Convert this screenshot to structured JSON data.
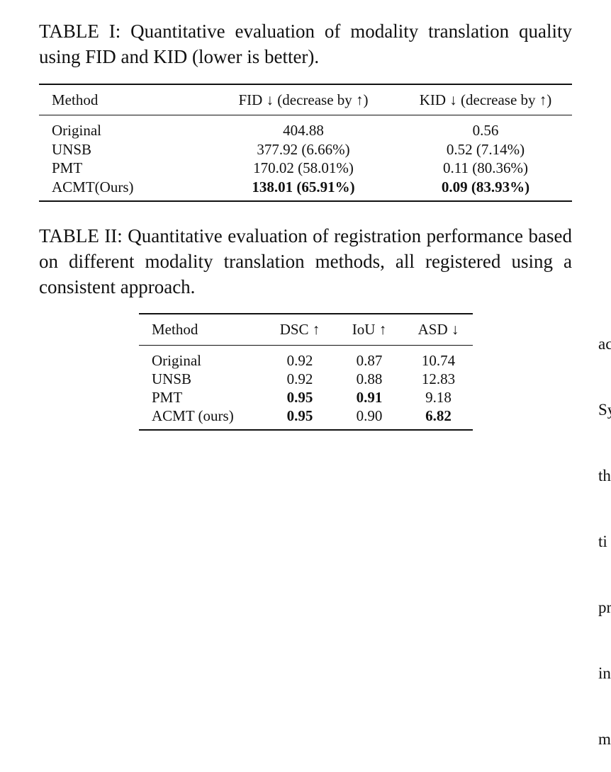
{
  "table1": {
    "caption": "TABLE I: Quantitative evaluation of modality translation quality using FID and KID (lower is better).",
    "headers": [
      "Method",
      "FID ↓ (decrease by ↑)",
      "KID ↓ (decrease by ↑)"
    ],
    "rows": [
      {
        "method": "Original",
        "fid": "404.88",
        "kid": "0.56",
        "bold": false
      },
      {
        "method": "UNSB",
        "fid": "377.92 (6.66%)",
        "kid": "0.52 (7.14%)",
        "bold": false
      },
      {
        "method": "PMT",
        "fid": "170.02 (58.01%)",
        "kid": "0.11 (80.36%)",
        "bold": false
      },
      {
        "method": "ACMT(Ours)",
        "fid": "138.01 (65.91%)",
        "kid": "0.09 (83.93%)",
        "bold": true
      }
    ]
  },
  "table2": {
    "caption": "TABLE II: Quantitative evaluation of registration performance based on different modality translation methods, all registered using a consistent approach.",
    "headers": [
      "Method",
      "DSC ↑",
      "IoU ↑",
      "ASD ↓"
    ],
    "rows": [
      {
        "method": "Original",
        "dsc": "0.92",
        "iou": "0.87",
        "asd": "10.74"
      },
      {
        "method": "UNSB",
        "dsc": "0.92",
        "iou": "0.88",
        "asd": "12.83"
      },
      {
        "method": "PMT",
        "dsc": "0.95",
        "iou": "0.91",
        "asd": "9.18"
      },
      {
        "method": "ACMT (ours)",
        "dsc": "0.95",
        "iou": "0.90",
        "asd": "6.82"
      }
    ]
  },
  "side_column_fragments": [
    "ac",
    "Sy",
    "th",
    "ti",
    "pr",
    "in",
    "m"
  ]
}
